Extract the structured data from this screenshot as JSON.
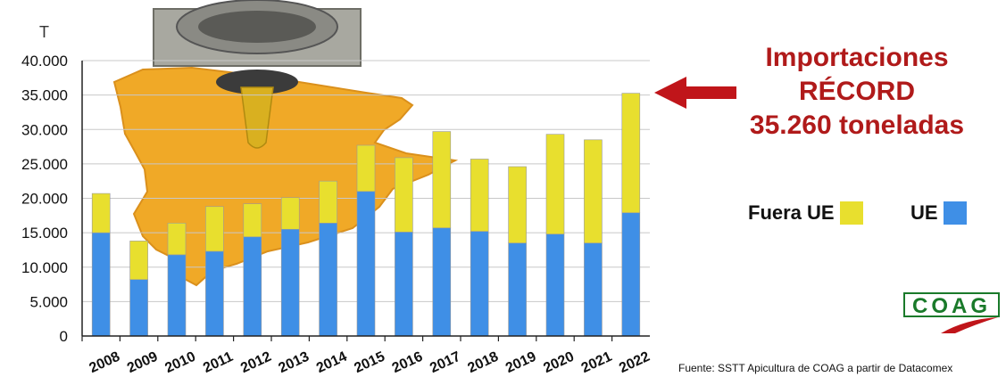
{
  "chart_data": {
    "type": "bar",
    "stacked": true,
    "ylabel": "T",
    "ylim": [
      0,
      40000
    ],
    "yticks": [
      "0",
      "5.000",
      "10.000",
      "15.000",
      "20.000",
      "25.000",
      "30.000",
      "35.000",
      "40.000"
    ],
    "grid": true,
    "categories": [
      "2008",
      "2009",
      "2010",
      "2011",
      "2012",
      "2013",
      "2014",
      "2015",
      "2016",
      "2017",
      "2018",
      "2019",
      "2020",
      "2021",
      "2022"
    ],
    "series": [
      {
        "name": "UE",
        "color": "#3f8fe6",
        "values": [
          15000,
          8200,
          11800,
          12300,
          14400,
          15500,
          16400,
          21000,
          15100,
          15700,
          15200,
          13500,
          14800,
          13500,
          17900
        ]
      },
      {
        "name": "Fuera UE",
        "color": "#e8df2e",
        "values": [
          5700,
          5600,
          4600,
          6500,
          4800,
          4600,
          6100,
          6700,
          10800,
          14000,
          10500,
          11100,
          14500,
          15000,
          17360
        ]
      }
    ]
  },
  "headline": {
    "line1": "Importaciones",
    "line2": "RÉCORD",
    "line3": "35.260 toneladas",
    "color": "#b01a1a"
  },
  "legend": {
    "fuera_label": "Fuera UE",
    "ue_label": "UE"
  },
  "logo": {
    "text": "COAG",
    "color": "#1a7a2a"
  },
  "source": "Fuente: SSTT Apicultura de COAG a partir de Datacomex",
  "illustration": {
    "description_icon": "spain-map-honey-drain-icon"
  }
}
